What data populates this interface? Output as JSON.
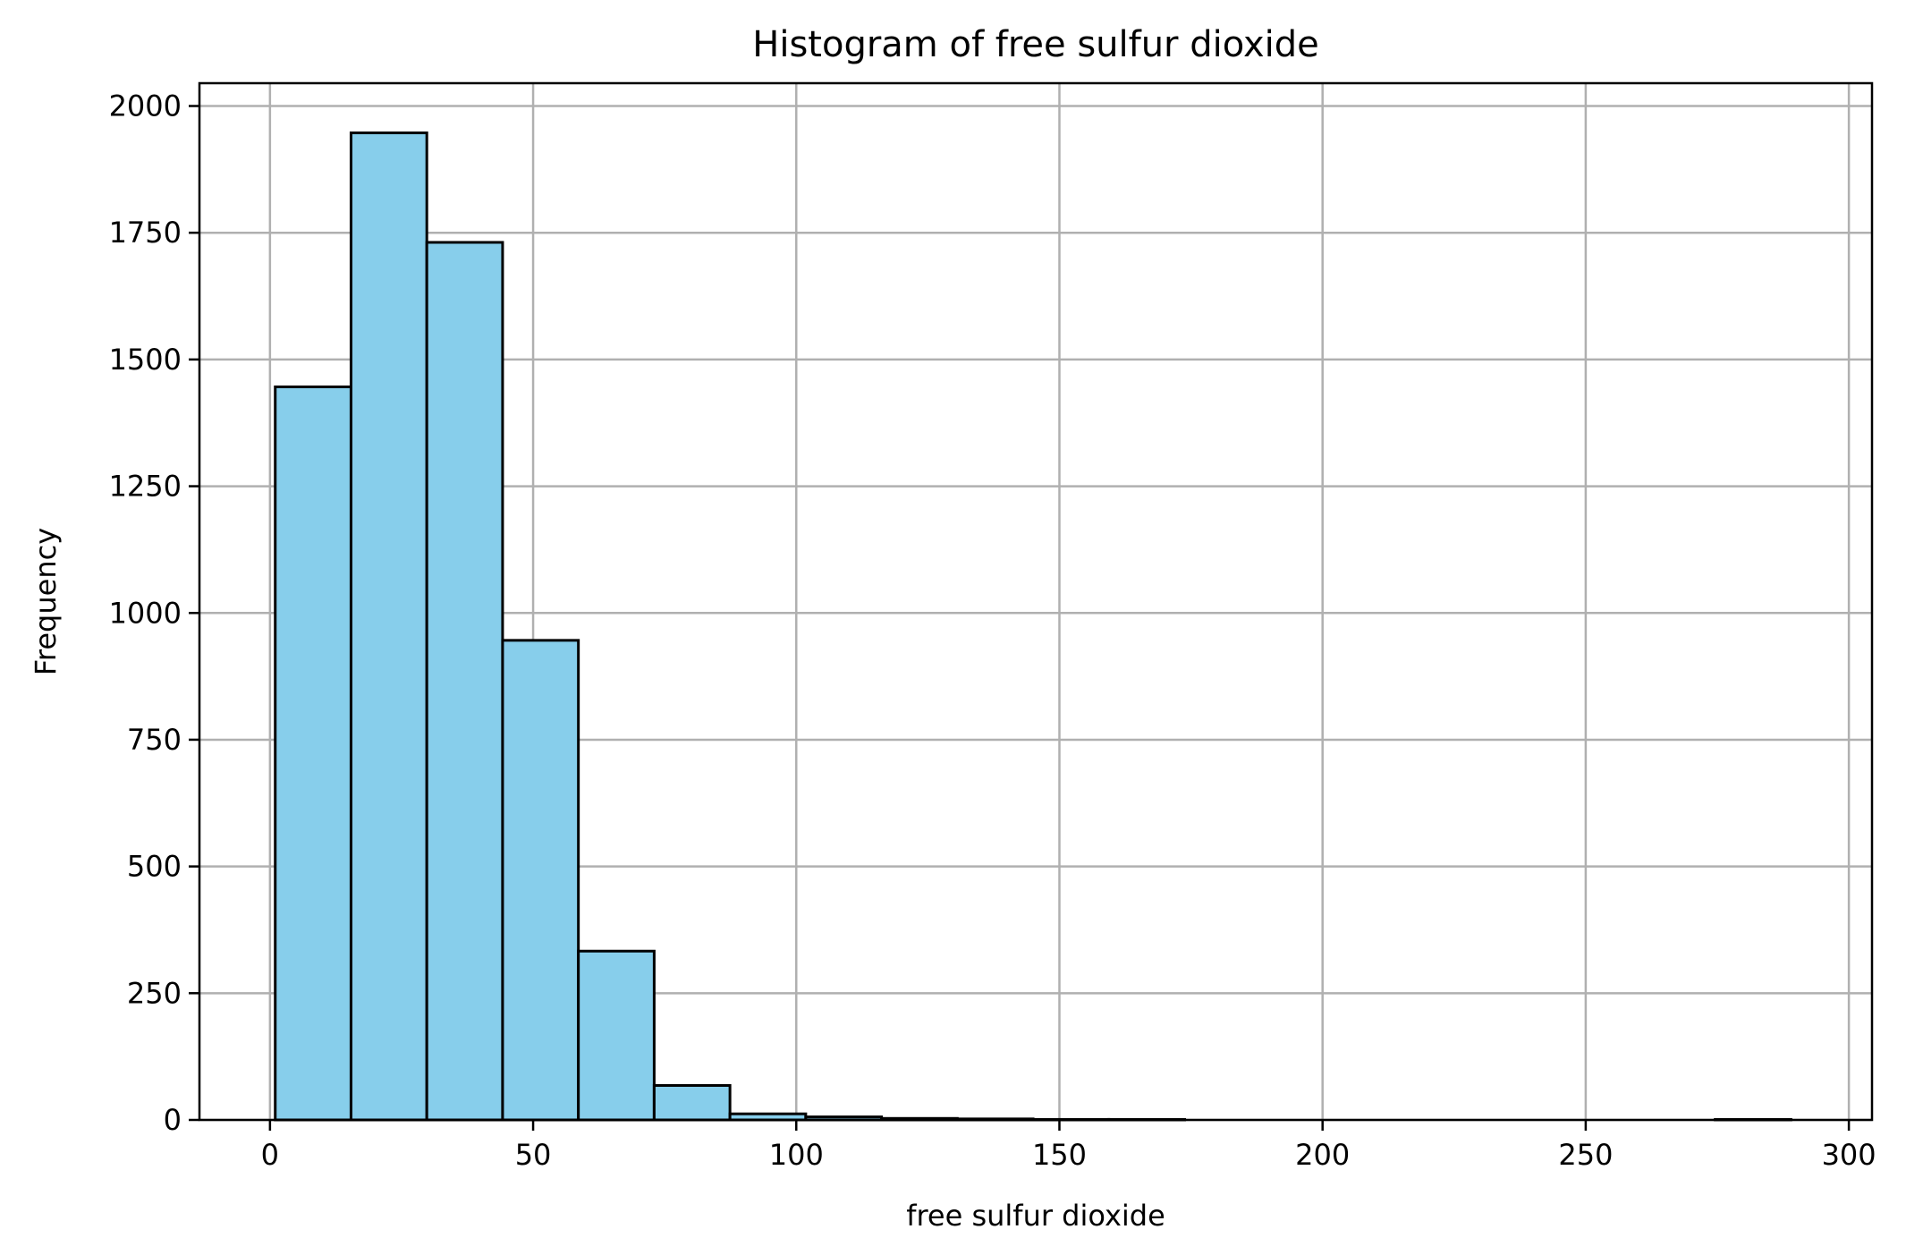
{
  "chart_data": {
    "type": "bar",
    "title": "Histogram of free sulfur dioxide",
    "xlabel": "free sulfur dioxide",
    "ylabel": "Frequency",
    "xlim": [
      -13.4,
      304.4
    ],
    "ylim": [
      0,
      2045
    ],
    "xticks": [
      0,
      50,
      100,
      150,
      200,
      250,
      300
    ],
    "yticks": [
      0,
      250,
      500,
      750,
      1000,
      1250,
      1500,
      1750,
      2000
    ],
    "grid": true,
    "bin_width": 14.4,
    "bins": [
      {
        "x0": 1.0,
        "x1": 15.4,
        "count": 1446
      },
      {
        "x0": 15.4,
        "x1": 29.8,
        "count": 1947
      },
      {
        "x0": 29.8,
        "x1": 44.2,
        "count": 1731
      },
      {
        "x0": 44.2,
        "x1": 58.6,
        "count": 946
      },
      {
        "x0": 58.6,
        "x1": 73.0,
        "count": 333
      },
      {
        "x0": 73.0,
        "x1": 87.4,
        "count": 68
      },
      {
        "x0": 87.4,
        "x1": 101.8,
        "count": 12
      },
      {
        "x0": 101.8,
        "x1": 116.2,
        "count": 6
      },
      {
        "x0": 116.2,
        "x1": 130.6,
        "count": 3
      },
      {
        "x0": 130.6,
        "x1": 145.0,
        "count": 2
      },
      {
        "x0": 145.0,
        "x1": 159.4,
        "count": 1
      },
      {
        "x0": 159.4,
        "x1": 173.8,
        "count": 1
      },
      {
        "x0": 173.8,
        "x1": 188.2,
        "count": 0
      },
      {
        "x0": 188.2,
        "x1": 202.6,
        "count": 0
      },
      {
        "x0": 202.6,
        "x1": 217.0,
        "count": 0
      },
      {
        "x0": 217.0,
        "x1": 231.4,
        "count": 0
      },
      {
        "x0": 231.4,
        "x1": 245.8,
        "count": 0
      },
      {
        "x0": 245.8,
        "x1": 260.2,
        "count": 0
      },
      {
        "x0": 260.2,
        "x1": 274.6,
        "count": 0
      },
      {
        "x0": 274.6,
        "x1": 289.0,
        "count": 1
      }
    ],
    "bar_color": "#87ceeb",
    "edge_color": "#000000",
    "grid_color": "#b0b0b0"
  }
}
